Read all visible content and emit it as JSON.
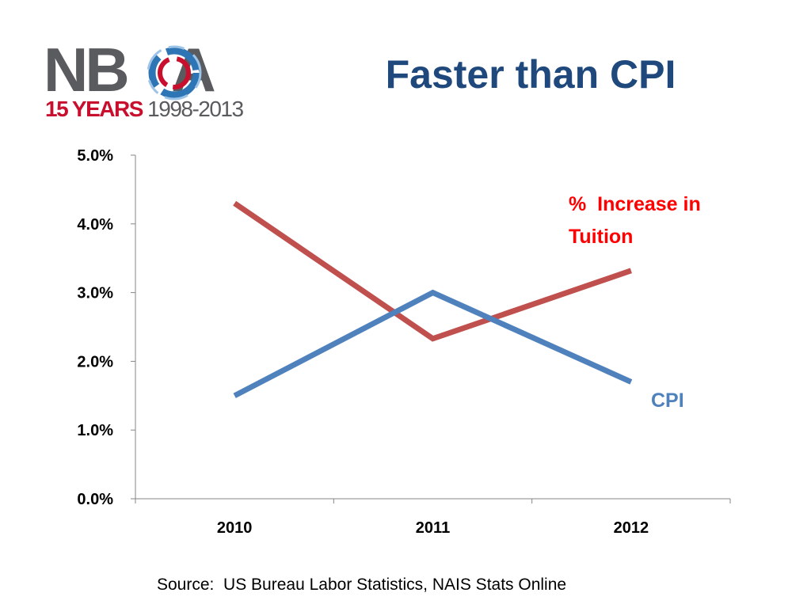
{
  "logo": {
    "letters": [
      "N",
      "B",
      "O",
      "A"
    ],
    "years_text": "15 YEARS",
    "range_text": "1998-2013",
    "colors": {
      "gray": "#5a5b5e",
      "red": "#c8102e",
      "blue": "#2e75b6"
    }
  },
  "title": "Faster than CPI",
  "source": "Source:  US Bureau Labor Statistics, NAIS Stats Online",
  "chart_data": {
    "type": "line",
    "categories": [
      "2010",
      "2011",
      "2012"
    ],
    "ylim": [
      0,
      5.0
    ],
    "yticks": [
      "0.0%",
      "1.0%",
      "2.0%",
      "3.0%",
      "4.0%",
      "5.0%"
    ],
    "grid": false,
    "series": [
      {
        "name": "% Increase in Tuition",
        "label_lines": [
          "%  Increase in",
          "Tuition"
        ],
        "values": [
          4.3,
          2.33,
          3.32
        ],
        "color": "#c0504d",
        "label_color": "#ff0000"
      },
      {
        "name": "CPI",
        "label_lines": [
          "CPI"
        ],
        "values": [
          1.5,
          3.0,
          1.7
        ],
        "color": "#4f81bd",
        "label_color": "#4f81bd"
      }
    ]
  }
}
